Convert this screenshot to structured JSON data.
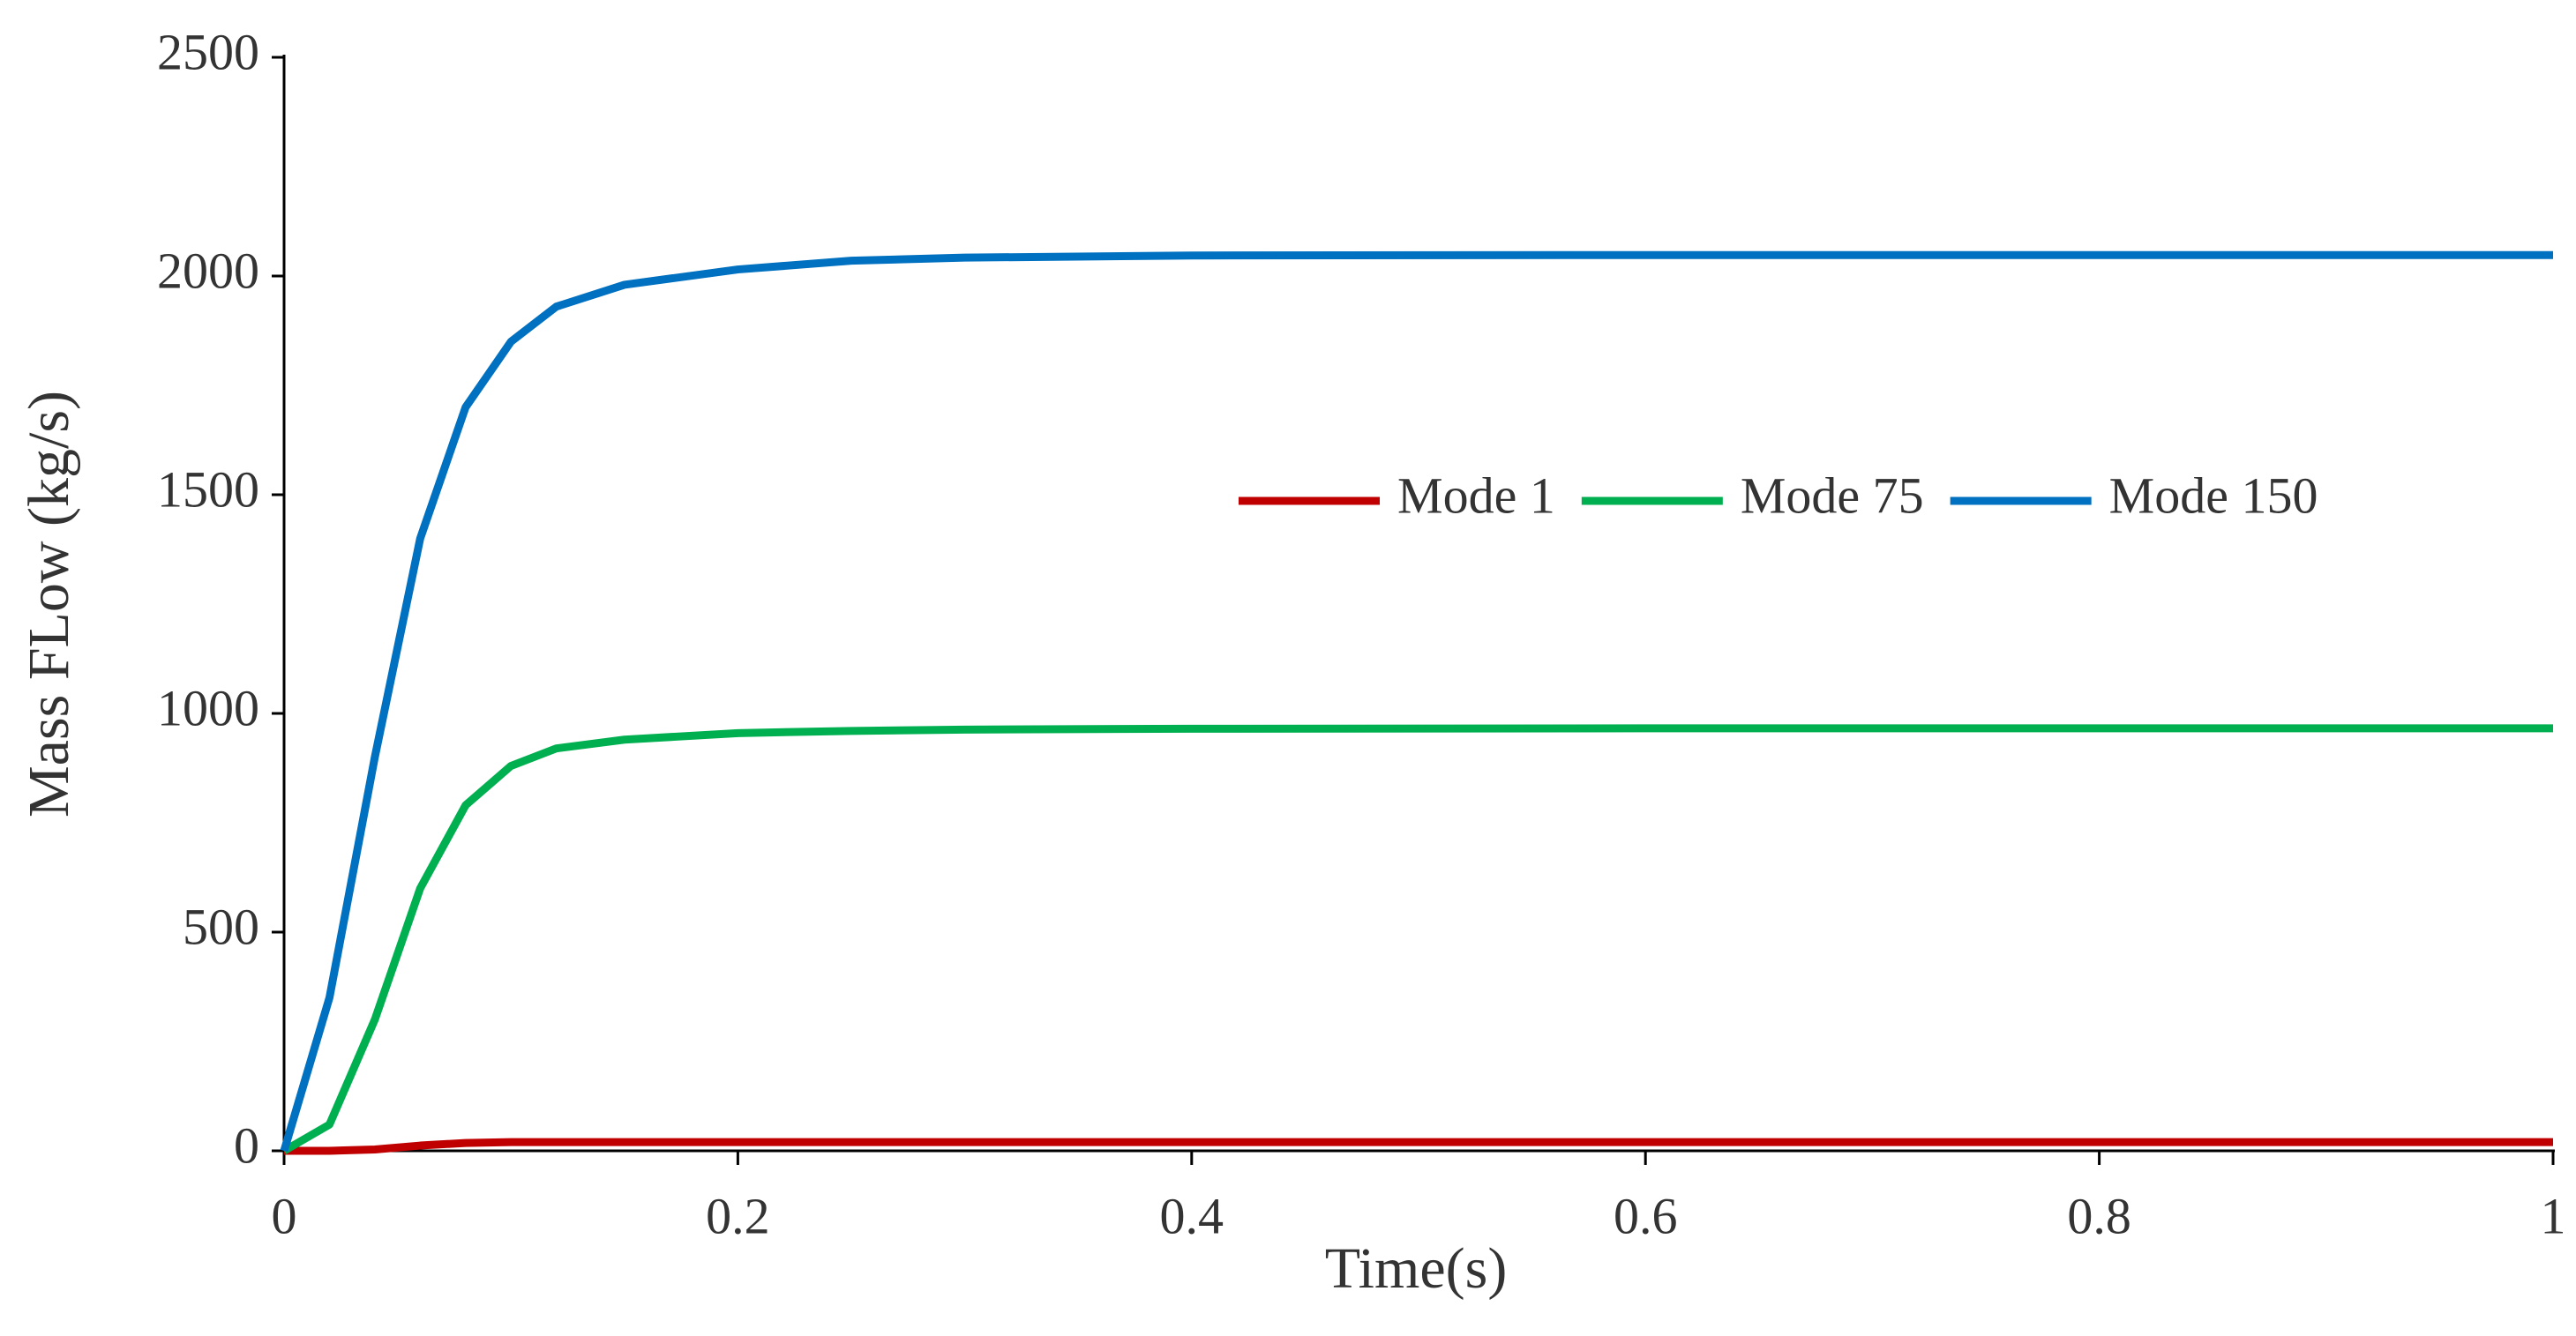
{
  "chart_data": {
    "type": "line",
    "x_label": "Time(s)",
    "y_label": "Mass FLow (kg/s)",
    "x": [
      0,
      0.02,
      0.04,
      0.06,
      0.08,
      0.1,
      0.12,
      0.15,
      0.2,
      0.25,
      0.3,
      0.4,
      0.6,
      0.8,
      1
    ],
    "series": [
      {
        "name": "Mode 1",
        "color": "#c00000",
        "values": [
          0,
          0,
          3,
          12,
          18,
          20,
          20,
          20,
          20,
          20,
          20,
          20,
          20,
          20,
          20
        ]
      },
      {
        "name": "Mode 75",
        "color": "#00b050",
        "values": [
          0,
          60,
          300,
          600,
          790,
          880,
          920,
          940,
          955,
          960,
          963,
          965,
          966,
          966,
          966
        ]
      },
      {
        "name": "Mode 150",
        "color": "#0070c0",
        "values": [
          0,
          350,
          900,
          1400,
          1700,
          1850,
          1930,
          1980,
          2015,
          2035,
          2042,
          2047,
          2048,
          2048,
          2048
        ]
      }
    ],
    "xlim": [
      0,
      1
    ],
    "xticks": [
      0,
      0.2,
      0.4,
      0.6,
      0.8,
      1
    ],
    "ylim": [
      0,
      2500
    ],
    "yticks": [
      0,
      500,
      1000,
      1500,
      2000,
      2500
    ],
    "grid": false,
    "legend": "center right"
  }
}
